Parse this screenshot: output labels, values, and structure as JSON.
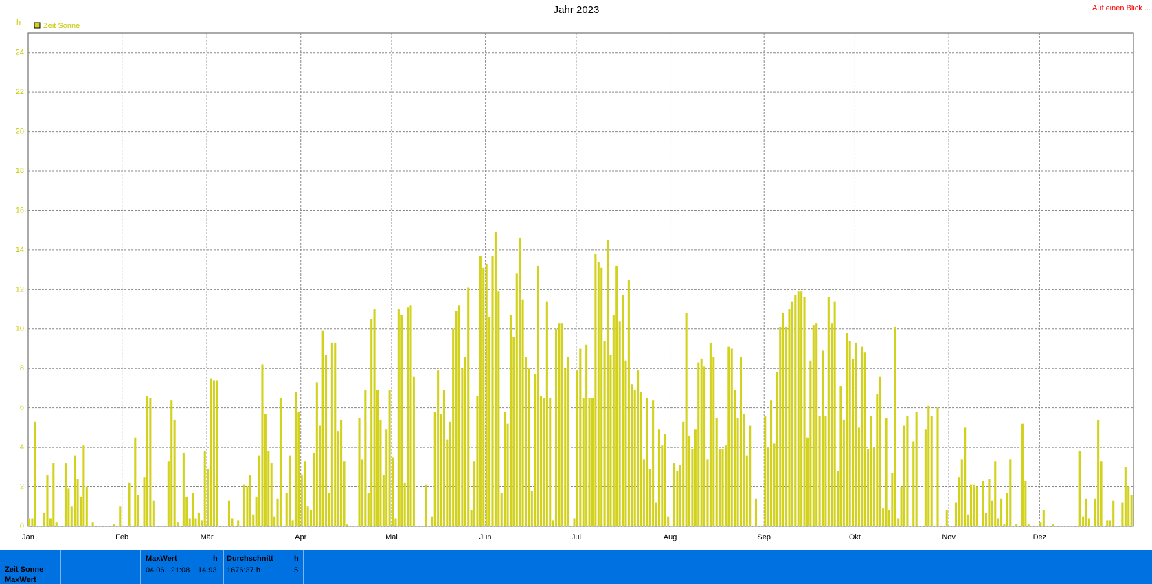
{
  "chart_data": {
    "type": "bar",
    "title": "Jahr 2023",
    "y_label": "h",
    "categories": [
      "Jan",
      null,
      null,
      null,
      null,
      null,
      null,
      null,
      null,
      null,
      null,
      null,
      null,
      null,
      null,
      null,
      null,
      null,
      null,
      null,
      null,
      null,
      null,
      null,
      null,
      null,
      null,
      null,
      null,
      null,
      null,
      "Feb",
      null,
      null,
      null,
      null,
      null,
      null,
      null,
      null,
      null,
      null,
      null,
      null,
      null,
      null,
      null,
      null,
      null,
      null,
      null,
      null,
      null,
      null,
      null,
      null,
      null,
      null,
      null,
      "Mär",
      null,
      null,
      null,
      null,
      null,
      null,
      null,
      null,
      null,
      null,
      null,
      null,
      null,
      null,
      null,
      null,
      null,
      null,
      null,
      null,
      null,
      null,
      null,
      null,
      null,
      null,
      null,
      null,
      null,
      null,
      "Apr",
      null,
      null,
      null,
      null,
      null,
      null,
      null,
      null,
      null,
      null,
      null,
      null,
      null,
      null,
      null,
      null,
      null,
      null,
      null,
      null,
      null,
      null,
      null,
      null,
      null,
      null,
      null,
      null,
      null,
      "Mai",
      null,
      null,
      null,
      null,
      null,
      null,
      null,
      null,
      null,
      null,
      null,
      null,
      null,
      null,
      null,
      null,
      null,
      null,
      null,
      null,
      null,
      null,
      null,
      null,
      null,
      null,
      null,
      null,
      null,
      null,
      "Jun",
      null,
      null,
      null,
      null,
      null,
      null,
      null,
      null,
      null,
      null,
      null,
      null,
      null,
      null,
      null,
      null,
      null,
      null,
      null,
      null,
      null,
      null,
      null,
      null,
      null,
      null,
      null,
      null,
      null,
      "Jul",
      null,
      null,
      null,
      null,
      null,
      null,
      null,
      null,
      null,
      null,
      null,
      null,
      null,
      null,
      null,
      null,
      null,
      null,
      null,
      null,
      null,
      null,
      null,
      null,
      null,
      null,
      null,
      null,
      null,
      null,
      "Aug",
      null,
      null,
      null,
      null,
      null,
      null,
      null,
      null,
      null,
      null,
      null,
      null,
      null,
      null,
      null,
      null,
      null,
      null,
      null,
      null,
      null,
      null,
      null,
      null,
      null,
      null,
      null,
      null,
      null,
      null,
      "Sep",
      null,
      null,
      null,
      null,
      null,
      null,
      null,
      null,
      null,
      null,
      null,
      null,
      null,
      null,
      null,
      null,
      null,
      null,
      null,
      null,
      null,
      null,
      null,
      null,
      null,
      null,
      null,
      null,
      null,
      "Okt",
      null,
      null,
      null,
      null,
      null,
      null,
      null,
      null,
      null,
      null,
      null,
      null,
      null,
      null,
      null,
      null,
      null,
      null,
      null,
      null,
      null,
      null,
      null,
      null,
      null,
      null,
      null,
      null,
      null,
      null,
      "Nov",
      null,
      null,
      null,
      null,
      null,
      null,
      null,
      null,
      null,
      null,
      null,
      null,
      null,
      null,
      null,
      null,
      null,
      null,
      null,
      null,
      null,
      null,
      null,
      null,
      null,
      null,
      null,
      null,
      null,
      "Dez",
      null,
      null,
      null,
      null,
      null,
      null,
      null,
      null,
      null,
      null,
      null,
      null,
      null,
      null,
      null,
      null,
      null,
      null,
      null,
      null,
      null,
      null,
      null,
      null,
      null,
      null,
      null,
      null,
      null,
      null
    ],
    "series": [
      {
        "name": "Zeit Sonne",
        "color": "#d2d21e",
        "values": [
          0.4,
          0.4,
          5.3,
          0,
          0,
          0.7,
          2.6,
          0.4,
          3.2,
          0.2,
          0,
          0,
          3.2,
          1.9,
          1.0,
          3.6,
          2.4,
          1.5,
          4.1,
          2.0,
          0,
          0.2,
          0,
          0,
          0,
          0,
          0,
          0,
          0.1,
          0,
          1.0,
          0,
          0,
          2.2,
          0,
          4.5,
          1.6,
          0,
          2.5,
          6.6,
          6.5,
          1.3,
          0,
          0,
          0,
          0,
          3.3,
          6.4,
          5.4,
          0.2,
          0,
          3.7,
          1.5,
          0.4,
          1.7,
          0.4,
          0.7,
          0.3,
          3.8,
          2.9,
          7.5,
          7.4,
          7.4,
          0,
          0,
          0,
          1.3,
          0.4,
          0,
          0.3,
          0,
          2.1,
          2.0,
          2.6,
          0.6,
          1.5,
          3.6,
          8.2,
          5.7,
          3.8,
          3.2,
          0.5,
          1.4,
          6.5,
          0,
          1.7,
          3.6,
          0.3,
          6.8,
          5.8,
          2.6,
          3.3,
          1.0,
          0.8,
          3.7,
          7.3,
          5.1,
          9.9,
          8.7,
          1.7,
          9.3,
          9.3,
          4.8,
          5.4,
          3.3,
          0.1,
          0,
          0,
          0,
          5.5,
          3.4,
          6.9,
          1.7,
          10.5,
          11.0,
          6.9,
          5.4,
          2.6,
          4.9,
          6.9,
          3.5,
          0.4,
          11.0,
          10.7,
          2.2,
          11.1,
          11.2,
          7.6,
          0,
          0,
          0,
          2.1,
          0,
          0.5,
          5.8,
          7.9,
          5.7,
          6.9,
          4.4,
          5.3,
          10.0,
          10.9,
          11.2,
          8.0,
          8.6,
          12.1,
          0.8,
          3.3,
          6.6,
          13.7,
          13.1,
          13.3,
          10.6,
          13.7,
          14.93,
          11.9,
          1.7,
          5.8,
          5.2,
          10.7,
          9.6,
          12.8,
          14.6,
          11.5,
          8.6,
          8.0,
          1.8,
          7.7,
          13.2,
          6.6,
          6.5,
          11.4,
          6.5,
          0.3,
          10.0,
          10.3,
          10.3,
          8.0,
          8.6,
          0,
          0.4,
          7.9,
          9.0,
          6.5,
          9.2,
          6.5,
          6.5,
          13.8,
          13.4,
          13.1,
          9.4,
          14.5,
          8.7,
          10.7,
          13.2,
          10.4,
          11.7,
          8.4,
          12.5,
          7.2,
          6.9,
          7.9,
          6.8,
          3.4,
          6.5,
          2.9,
          6.4,
          1.2,
          4.9,
          4.1,
          4.7,
          0.5,
          0,
          3.2,
          2.8,
          3.1,
          5.3,
          10.8,
          4.6,
          3.9,
          4.9,
          8.3,
          8.5,
          8.1,
          3.4,
          9.3,
          8.6,
          5.5,
          3.9,
          3.9,
          4.1,
          9.1,
          9.0,
          6.9,
          5.5,
          8.6,
          5.7,
          3.6,
          5.1,
          0,
          1.4,
          0,
          0,
          5.6,
          4.0,
          6.4,
          4.2,
          7.8,
          10.1,
          10.8,
          10.1,
          11.0,
          11.4,
          11.7,
          11.9,
          11.9,
          11.6,
          4.5,
          8.4,
          10.2,
          10.3,
          5.6,
          8.9,
          5.6,
          11.6,
          10.3,
          11.4,
          2.8,
          7.1,
          5.4,
          9.8,
          9.4,
          8.5,
          9.3,
          5.0,
          9.1,
          8.8,
          3.9,
          5.6,
          4.0,
          6.7,
          7.6,
          0.9,
          5.5,
          0.8,
          2.7,
          10.1,
          0.4,
          2.0,
          5.1,
          5.6,
          0,
          4.3,
          5.8,
          0,
          0,
          4.9,
          6.1,
          5.6,
          0,
          6.0,
          0,
          0,
          0.8,
          0,
          0,
          1.2,
          2.5,
          3.4,
          5.0,
          0.6,
          2.1,
          2.1,
          2.0,
          0,
          2.3,
          0.7,
          2.4,
          1.3,
          3.3,
          0.4,
          1.4,
          0.1,
          1.7,
          3.4,
          0,
          0.1,
          0,
          5.2,
          2.3,
          0.1,
          0,
          0,
          0,
          0.2,
          0.8,
          0,
          0,
          0.1,
          0,
          0,
          0,
          0,
          0,
          0,
          0,
          0,
          3.8,
          0.5,
          1.4,
          0.4,
          0,
          1.4,
          5.4,
          3.3,
          0,
          0.3,
          0.3,
          1.3,
          0,
          0,
          1.2,
          3.0,
          2.0,
          1.6
        ]
      }
    ],
    "ylim": [
      0,
      25
    ],
    "yticks": [
      0,
      2,
      4,
      6,
      8,
      10,
      12,
      14,
      16,
      18,
      20,
      22,
      24
    ],
    "grid": true
  },
  "header": {
    "link": "Auf einen Blick ..."
  },
  "summary": {
    "row_label": "Zeit Sonne",
    "row_label2": "MaxWert",
    "max": {
      "title": "MaxWert",
      "unit": "h",
      "time": "04.06.  21:08",
      "value": "14.93"
    },
    "avg": {
      "title": "Durchschnitt",
      "unit": "h",
      "total": "1676:37 h",
      "value": "5"
    }
  }
}
